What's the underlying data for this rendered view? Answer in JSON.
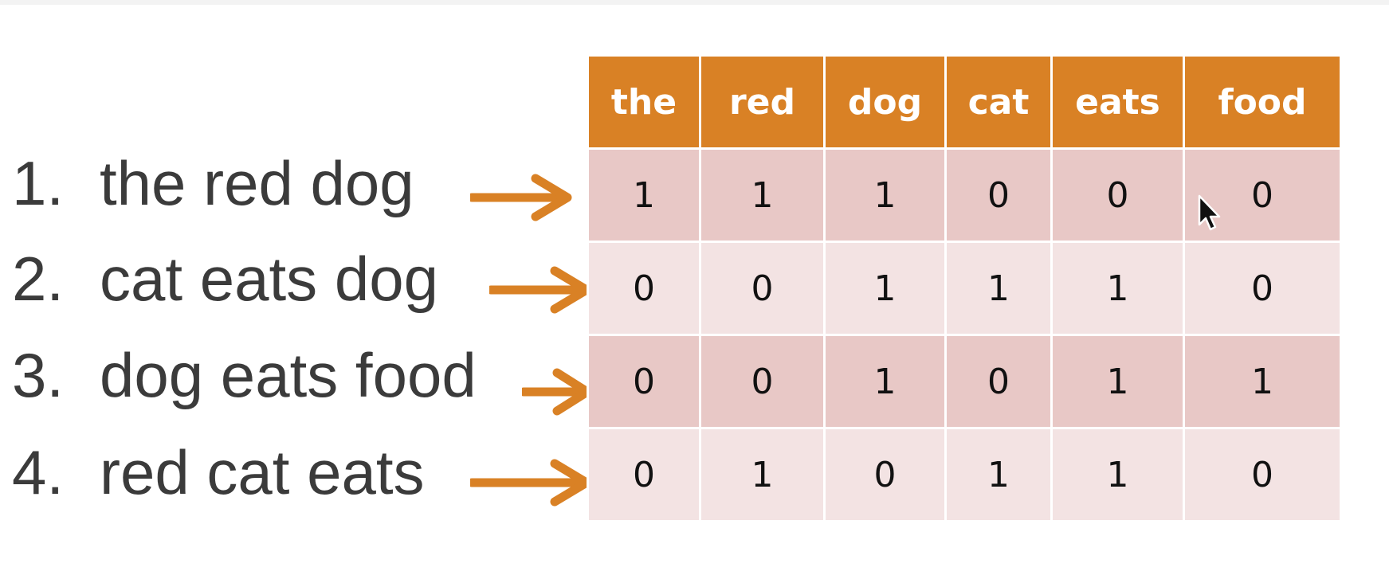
{
  "sentences": [
    {
      "num": "1.",
      "text": "the red dog"
    },
    {
      "num": "2.",
      "text": "cat eats dog"
    },
    {
      "num": "3.",
      "text": "dog eats food"
    },
    {
      "num": "4.",
      "text": "red cat eats"
    }
  ],
  "table": {
    "headers": [
      "the",
      "red",
      "dog",
      "cat",
      "eats",
      "food"
    ],
    "rows": [
      [
        "1",
        "1",
        "1",
        "0",
        "0",
        "0"
      ],
      [
        "0",
        "0",
        "1",
        "1",
        "1",
        "0"
      ],
      [
        "0",
        "0",
        "1",
        "0",
        "1",
        "1"
      ],
      [
        "0",
        "1",
        "0",
        "1",
        "1",
        "0"
      ]
    ]
  },
  "colors": {
    "header_bg": "#d98125",
    "arrow": "#d98125",
    "row_dark": "#e8c8c6",
    "row_light": "#f3e3e3",
    "sentence_text": "#3b3b3b"
  },
  "icons": {
    "arrow": "right-arrow-icon",
    "cursor": "mouse-pointer-icon"
  }
}
